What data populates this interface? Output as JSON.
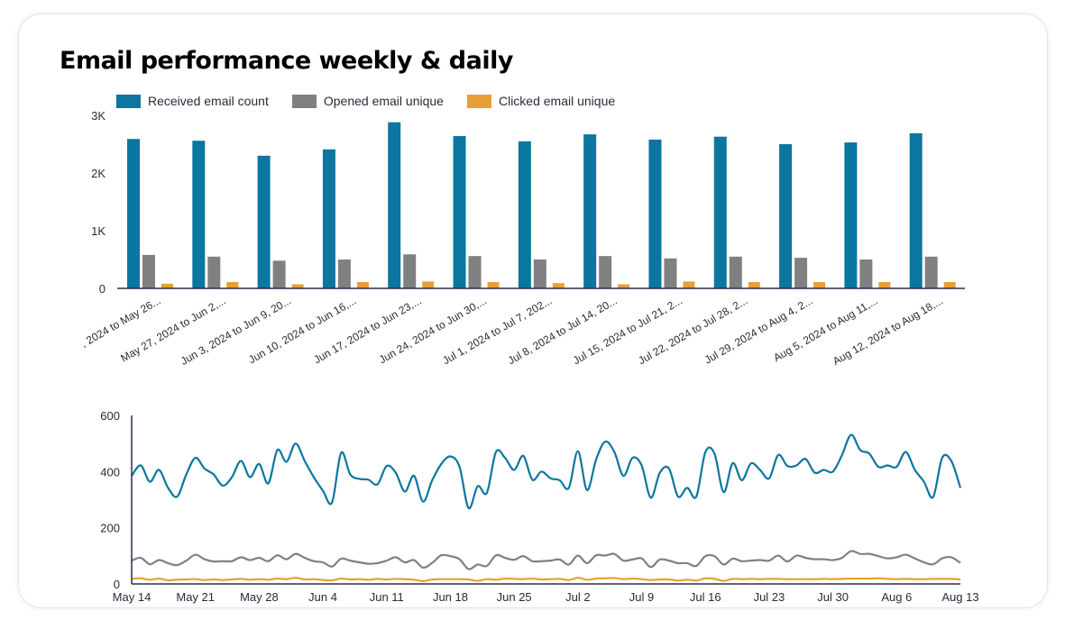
{
  "title": "Email performance weekly & daily",
  "colors": {
    "received": "#0b769f",
    "opened": "#808080",
    "clicked": "#e8a035",
    "axis": "#2d2d4a"
  },
  "legend": [
    {
      "label": "Received email count",
      "color": "#0b769f"
    },
    {
      "label": "Opened email unique",
      "color": "#808080"
    },
    {
      "label": "Clicked email unique",
      "color": "#e8a035"
    }
  ],
  "chart_data": [
    {
      "type": "bar",
      "title": "Email performance weekly & daily",
      "categories": [
        ", 2024 to May 26...",
        "May 27, 2024 to Jun 2,...",
        "Jun 3, 2024 to Jun 9, 20...",
        "Jun 10, 2024 to Jun 16,...",
        "Jun 17, 2024 to Jun 23,...",
        "Jun 24, 2024 to Jun 30,...",
        "Jul 1, 2024 to Jul 7, 202...",
        "Jul 8, 2024 to Jul 14, 20...",
        "Jul 15, 2024 to Jul 21, 2...",
        "Jul 22, 2024 to Jul 28, 2...",
        "Jul 29, 2024 to Aug 4, 2...",
        "Aug 5, 2024 to Aug 11,...",
        "Aug 12, 2024 to Aug 18,..."
      ],
      "series": [
        {
          "name": "Received email count",
          "values": [
            2590,
            2560,
            2300,
            2410,
            2880,
            2640,
            2550,
            2670,
            2580,
            2630,
            2500,
            2530,
            2690
          ]
        },
        {
          "name": "Opened email unique",
          "values": [
            580,
            550,
            480,
            500,
            590,
            560,
            500,
            560,
            520,
            550,
            530,
            500,
            550
          ]
        },
        {
          "name": "Clicked email unique",
          "values": [
            80,
            110,
            70,
            110,
            120,
            110,
            90,
            70,
            120,
            110,
            110,
            110,
            110
          ]
        }
      ],
      "yticks": [
        "0",
        "1K",
        "2K",
        "3K"
      ],
      "ylim": [
        0,
        3000
      ],
      "grid": false,
      "legend_position": "top-left"
    },
    {
      "type": "line",
      "x": [
        "2024-05-14",
        "2024-05-15",
        "2024-05-16",
        "2024-05-17",
        "2024-05-18",
        "2024-05-19",
        "2024-05-20",
        "2024-05-21",
        "2024-05-22",
        "2024-05-23",
        "2024-05-24",
        "2024-05-25",
        "2024-05-26",
        "2024-05-27",
        "2024-05-28",
        "2024-05-29",
        "2024-05-30",
        "2024-05-31",
        "2024-06-01",
        "2024-06-02",
        "2024-06-03",
        "2024-06-04",
        "2024-06-05",
        "2024-06-06",
        "2024-06-07",
        "2024-06-08",
        "2024-06-09",
        "2024-06-10",
        "2024-06-11",
        "2024-06-12",
        "2024-06-13",
        "2024-06-14",
        "2024-06-15",
        "2024-06-16",
        "2024-06-17",
        "2024-06-18",
        "2024-06-19",
        "2024-06-20",
        "2024-06-21",
        "2024-06-22",
        "2024-06-23",
        "2024-06-24",
        "2024-06-25",
        "2024-06-26",
        "2024-06-27",
        "2024-06-28",
        "2024-06-29",
        "2024-06-30",
        "2024-07-01",
        "2024-07-02",
        "2024-07-03",
        "2024-07-04",
        "2024-07-05",
        "2024-07-06",
        "2024-07-07",
        "2024-07-08",
        "2024-07-09",
        "2024-07-10",
        "2024-07-11",
        "2024-07-12",
        "2024-07-13",
        "2024-07-14",
        "2024-07-15",
        "2024-07-16",
        "2024-07-17",
        "2024-07-18",
        "2024-07-19",
        "2024-07-20",
        "2024-07-21",
        "2024-07-22",
        "2024-07-23",
        "2024-07-24",
        "2024-07-25",
        "2024-07-26",
        "2024-07-27",
        "2024-07-28",
        "2024-07-29",
        "2024-07-30",
        "2024-07-31",
        "2024-08-01",
        "2024-08-02",
        "2024-08-03",
        "2024-08-04",
        "2024-08-05",
        "2024-08-06",
        "2024-08-07",
        "2024-08-08",
        "2024-08-09",
        "2024-08-10",
        "2024-08-11",
        "2024-08-12",
        "2024-08-13"
      ],
      "series": [
        {
          "name": "Received email count",
          "values": [
            385,
            422,
            364,
            406,
            342,
            311,
            390,
            449,
            411,
            390,
            350,
            380,
            438,
            380,
            427,
            358,
            477,
            435,
            500,
            438,
            380,
            332,
            290,
            467,
            390,
            374,
            371,
            355,
            420,
            396,
            329,
            385,
            293,
            369,
            427,
            454,
            417,
            270,
            348,
            324,
            470,
            449,
            406,
            456,
            371,
            400,
            376,
            369,
            342,
            473,
            334,
            443,
            507,
            470,
            385,
            449,
            422,
            307,
            396,
            411,
            311,
            342,
            311,
            470,
            464,
            327,
            430,
            369,
            429,
            406,
            376,
            459,
            420,
            422,
            445,
            396,
            406,
            400,
            459,
            531,
            477,
            464,
            417,
            422,
            417,
            470,
            406,
            364,
            309,
            449,
            438,
            342
          ]
        },
        {
          "name": "Opened email unique",
          "values": [
            83,
            93,
            70,
            85,
            74,
            67,
            83,
            104,
            88,
            80,
            81,
            81,
            95,
            85,
            93,
            81,
            102,
            88,
            107,
            93,
            81,
            77,
            62,
            90,
            83,
            77,
            72,
            74,
            83,
            95,
            77,
            85,
            58,
            75,
            102,
            99,
            88,
            53,
            69,
            64,
            102,
            93,
            86,
            99,
            81,
            81,
            83,
            87,
            69,
            101,
            74,
            102,
            101,
            107,
            83,
            87,
            91,
            60,
            87,
            83,
            74,
            74,
            64,
            99,
            99,
            69,
            90,
            81,
            83,
            85,
            83,
            101,
            80,
            101,
            93,
            88,
            88,
            85,
            93,
            117,
            107,
            107,
            99,
            91,
            95,
            104,
            91,
            77,
            70,
            91,
            95,
            75
          ]
        },
        {
          "name": "Clicked email unique",
          "values": [
            18,
            20,
            15,
            19,
            13,
            15,
            16,
            17,
            14,
            16,
            14,
            16,
            18,
            15,
            17,
            15,
            19,
            17,
            22,
            16,
            17,
            14,
            13,
            19,
            16,
            17,
            15,
            18,
            16,
            18,
            17,
            15,
            10,
            16,
            17,
            17,
            17,
            16,
            11,
            17,
            15,
            19,
            18,
            17,
            19,
            16,
            17,
            18,
            14,
            22,
            15,
            19,
            20,
            21,
            17,
            19,
            17,
            14,
            16,
            16,
            12,
            15,
            12,
            20,
            18,
            11,
            18,
            17,
            18,
            17,
            18,
            18,
            17,
            17,
            17,
            17,
            18,
            17,
            18,
            19,
            19,
            19,
            20,
            18,
            17,
            18,
            17,
            17,
            18,
            18,
            18,
            16
          ]
        }
      ],
      "xticks": [
        "May 14",
        "May 21",
        "May 28",
        "Jun 4",
        "Jun 11",
        "Jun 18",
        "Jun 25",
        "Jul 2",
        "Jul 9",
        "Jul 16",
        "Jul 23",
        "Jul 30",
        "Aug 6",
        "Aug 13"
      ],
      "yticks": [
        "0",
        "200",
        "400",
        "600"
      ],
      "ylim": [
        0,
        600
      ],
      "grid": false
    }
  ]
}
